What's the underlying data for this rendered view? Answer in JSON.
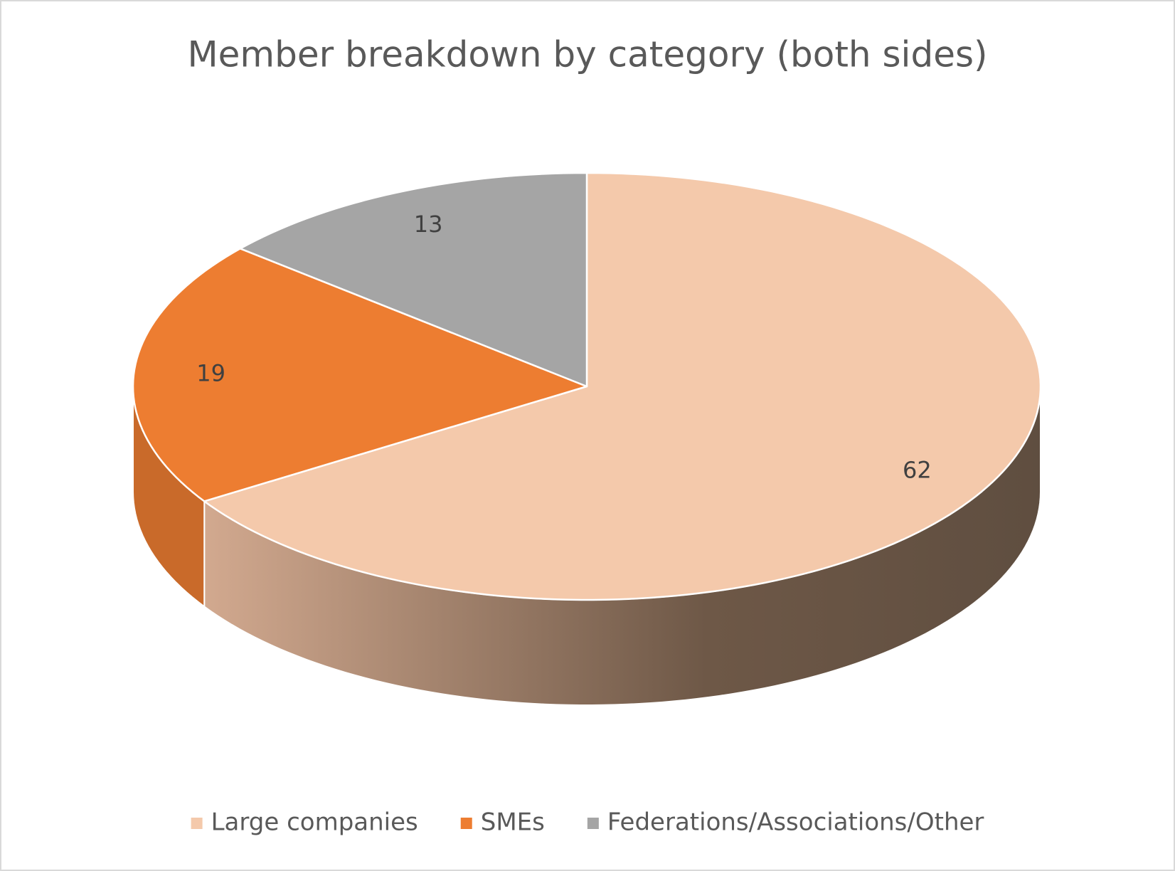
{
  "chart_data": {
    "type": "pie",
    "title": "Member breakdown by category (both sides)",
    "categories": [
      "Large companies",
      "SMEs",
      "Federations/Associations/Other"
    ],
    "values": [
      62,
      19,
      13
    ],
    "colors": [
      "#f4c9ab",
      "#ed7d31",
      "#a5a5a5"
    ],
    "legend": "bottom"
  }
}
